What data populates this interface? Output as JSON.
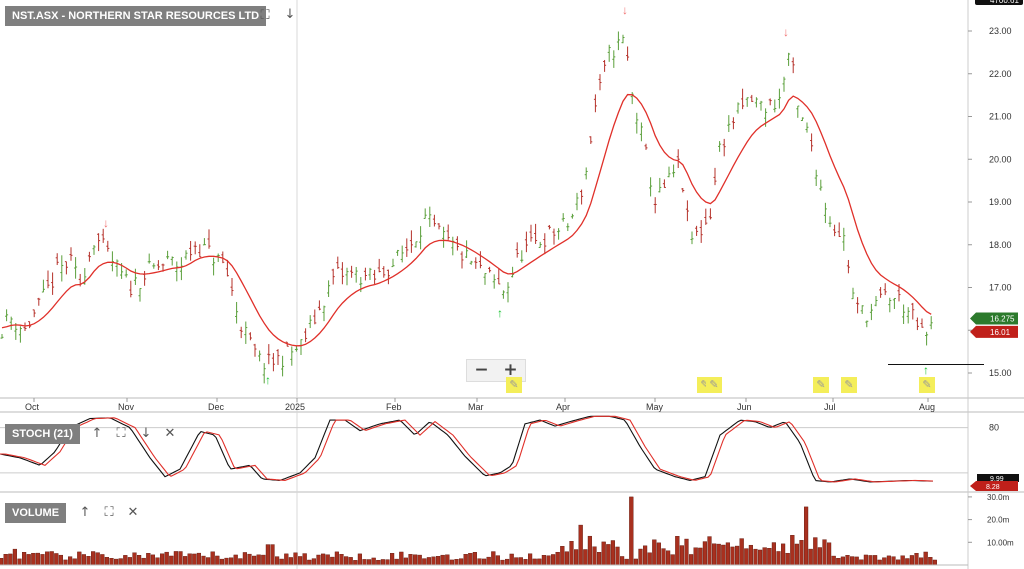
{
  "panels": {
    "price": {
      "title": "NST.ASX - NORTHERN STAR RESOURCES LTD"
    },
    "stoch": {
      "title": "STOCH (21)"
    },
    "volume": {
      "title": "VOLUME"
    }
  },
  "top_right_label": "4700.61",
  "price_axis_ticks": [
    "23.00",
    "22.00",
    "21.00",
    "20.00",
    "19.00",
    "18.00",
    "17.00",
    "16.00",
    "15.00"
  ],
  "price_badges": {
    "last": "16.275",
    "ma": "16.01"
  },
  "stoch_ticks": [
    "80"
  ],
  "stoch_badges": {
    "top": "9.99",
    "bottom": "8.28"
  },
  "volume_ticks": [
    "30.0m",
    "20.0m",
    "10.00m"
  ],
  "x_axis_labels": [
    "Oct",
    "Nov",
    "Dec",
    "2025",
    "Feb",
    "Mar",
    "Apr",
    "May",
    "Jun",
    "Jul",
    "Aug"
  ],
  "zoom": {
    "minus": "−",
    "plus": "+"
  },
  "icons": [
    "expand-icon",
    "arrow-down-icon",
    "arrow-up-icon",
    "close-icon",
    "note-icon",
    "pencil-icon"
  ],
  "colors": {
    "up_bar": "#5a9f3a",
    "down_bar": "#b5312a",
    "ma_line": "#e0302a",
    "stoch_k": "#111111",
    "stoch_d": "#e0302a",
    "volume_bar": "#a8301f",
    "panel_title_bg": "#7f7f7f",
    "up_arrow": "#16c22e",
    "down_arrow": "#f07070"
  },
  "chart_data": {
    "type": "ohlc",
    "symbol": "NST.ASX",
    "ylim": [
      14.7,
      23.3
    ],
    "close_keypoints": [
      [
        0,
        16.0
      ],
      [
        10,
        16.3
      ],
      [
        25,
        16.0
      ],
      [
        40,
        16.6
      ],
      [
        58,
        17.4
      ],
      [
        70,
        17.6
      ],
      [
        80,
        17.1
      ],
      [
        95,
        18.2
      ],
      [
        115,
        17.5
      ],
      [
        130,
        17.0
      ],
      [
        150,
        17.4
      ],
      [
        170,
        17.6
      ],
      [
        180,
        17.5
      ],
      [
        195,
        18.0
      ],
      [
        210,
        17.8
      ],
      [
        225,
        17.5
      ],
      [
        240,
        16.2
      ],
      [
        258,
        15.3
      ],
      [
        268,
        15.2
      ],
      [
        285,
        15.4
      ],
      [
        300,
        15.6
      ],
      [
        320,
        16.5
      ],
      [
        335,
        17.3
      ],
      [
        355,
        17.3
      ],
      [
        375,
        17.2
      ],
      [
        395,
        17.6
      ],
      [
        410,
        18.0
      ],
      [
        425,
        18.6
      ],
      [
        445,
        18.1
      ],
      [
        465,
        17.7
      ],
      [
        485,
        17.3
      ],
      [
        500,
        17.0
      ],
      [
        505,
        16.9
      ],
      [
        520,
        17.8
      ],
      [
        540,
        18.1
      ],
      [
        555,
        18.3
      ],
      [
        570,
        18.5
      ],
      [
        585,
        19.5
      ],
      [
        595,
        21.2
      ],
      [
        610,
        22.5
      ],
      [
        625,
        22.8
      ],
      [
        632,
        21.5
      ],
      [
        645,
        20.2
      ],
      [
        655,
        19.0
      ],
      [
        670,
        19.5
      ],
      [
        680,
        19.9
      ],
      [
        690,
        18.1
      ],
      [
        700,
        18.3
      ],
      [
        710,
        18.7
      ],
      [
        720,
        20.3
      ],
      [
        735,
        21.0
      ],
      [
        750,
        21.4
      ],
      [
        765,
        21.2
      ],
      [
        780,
        21.4
      ],
      [
        790,
        22.6
      ],
      [
        798,
        21.1
      ],
      [
        810,
        20.5
      ],
      [
        820,
        19.4
      ],
      [
        830,
        18.6
      ],
      [
        845,
        18.1
      ],
      [
        855,
        16.5
      ],
      [
        870,
        16.4
      ],
      [
        885,
        16.8
      ],
      [
        900,
        16.7
      ],
      [
        915,
        16.2
      ],
      [
        925,
        15.8
      ],
      [
        935,
        16.2
      ]
    ],
    "up_signals_x": [
      270,
      502,
      928
    ],
    "down_signals_x": [
      108,
      627,
      788
    ],
    "support_line": 15.2,
    "last_close": 16.275,
    "ma_value": 16.01,
    "stoch_keypoints": [
      [
        0,
        45
      ],
      [
        20,
        40
      ],
      [
        40,
        30
      ],
      [
        55,
        48
      ],
      [
        70,
        80
      ],
      [
        90,
        92
      ],
      [
        110,
        93
      ],
      [
        130,
        80
      ],
      [
        150,
        40
      ],
      [
        165,
        15
      ],
      [
        180,
        25
      ],
      [
        200,
        75
      ],
      [
        215,
        70
      ],
      [
        230,
        25
      ],
      [
        250,
        30
      ],
      [
        262,
        12
      ],
      [
        280,
        10
      ],
      [
        300,
        20
      ],
      [
        315,
        40
      ],
      [
        330,
        90
      ],
      [
        345,
        90
      ],
      [
        360,
        76
      ],
      [
        380,
        85
      ],
      [
        400,
        90
      ],
      [
        415,
        70
      ],
      [
        430,
        88
      ],
      [
        448,
        70
      ],
      [
        465,
        42
      ],
      [
        485,
        16
      ],
      [
        500,
        20
      ],
      [
        512,
        30
      ],
      [
        525,
        85
      ],
      [
        540,
        90
      ],
      [
        555,
        82
      ],
      [
        570,
        88
      ],
      [
        590,
        95
      ],
      [
        610,
        95
      ],
      [
        625,
        90
      ],
      [
        640,
        55
      ],
      [
        655,
        25
      ],
      [
        675,
        15
      ],
      [
        690,
        10
      ],
      [
        705,
        15
      ],
      [
        720,
        70
      ],
      [
        740,
        90
      ],
      [
        755,
        88
      ],
      [
        770,
        80
      ],
      [
        785,
        88
      ],
      [
        800,
        60
      ],
      [
        815,
        10
      ],
      [
        830,
        8
      ],
      [
        850,
        12
      ],
      [
        870,
        8
      ],
      [
        890,
        9
      ],
      [
        910,
        10
      ],
      [
        935,
        9
      ]
    ],
    "volume_max": 32,
    "volume_peaks": [
      [
        630,
        30
      ],
      [
        805,
        20
      ],
      [
        580,
        12
      ],
      [
        270,
        9
      ],
      [
        15,
        7
      ]
    ]
  }
}
